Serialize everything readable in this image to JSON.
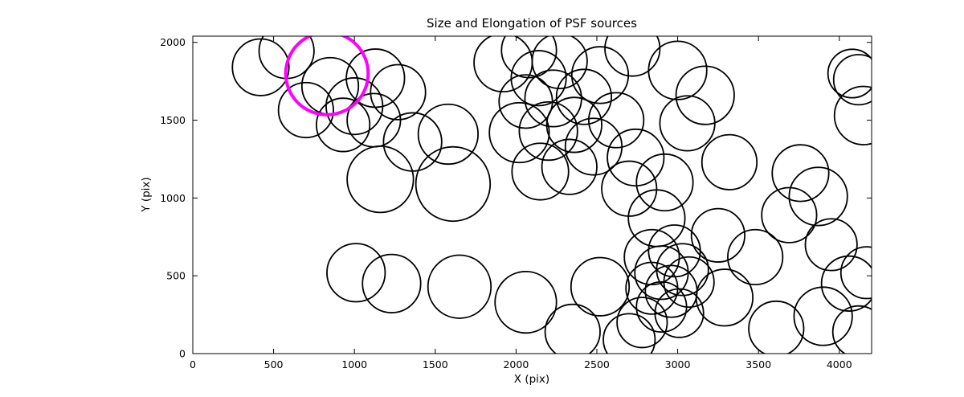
{
  "chart_data": {
    "type": "scatter",
    "title": "Size and Elongation of PSF sources",
    "xlabel": "X (pix)",
    "ylabel": "Y (pix)",
    "xlim": [
      0,
      4200
    ],
    "ylim": [
      0,
      2040
    ],
    "xticks": [
      0,
      500,
      1000,
      1500,
      2000,
      2500,
      3000,
      3500,
      4000
    ],
    "yticks": [
      0,
      500,
      1000,
      1500,
      2000
    ],
    "grid": false,
    "legend": false,
    "circle_color": "#000000",
    "highlight_color": "#ff00ff",
    "circles": [
      {
        "x": 420,
        "y": 1840,
        "r": 175
      },
      {
        "x": 580,
        "y": 1945,
        "r": 170
      },
      {
        "x": 850,
        "y": 1720,
        "r": 175
      },
      {
        "x": 700,
        "y": 1565,
        "r": 170
      },
      {
        "x": 1000,
        "y": 1590,
        "r": 175
      },
      {
        "x": 1130,
        "y": 1770,
        "r": 180
      },
      {
        "x": 1270,
        "y": 1680,
        "r": 170
      },
      {
        "x": 930,
        "y": 1470,
        "r": 165
      },
      {
        "x": 1120,
        "y": 1500,
        "r": 165
      },
      {
        "x": 1360,
        "y": 1360,
        "r": 180
      },
      {
        "x": 1580,
        "y": 1410,
        "r": 185
      },
      {
        "x": 1160,
        "y": 1120,
        "r": 205
      },
      {
        "x": 1610,
        "y": 1090,
        "r": 230
      },
      {
        "x": 1920,
        "y": 1870,
        "r": 180
      },
      {
        "x": 2080,
        "y": 1950,
        "r": 170
      },
      {
        "x": 2140,
        "y": 1770,
        "r": 170
      },
      {
        "x": 2270,
        "y": 1880,
        "r": 170
      },
      {
        "x": 2060,
        "y": 1620,
        "r": 165
      },
      {
        "x": 2230,
        "y": 1640,
        "r": 175
      },
      {
        "x": 2020,
        "y": 1420,
        "r": 185
      },
      {
        "x": 2200,
        "y": 1430,
        "r": 180
      },
      {
        "x": 2360,
        "y": 1470,
        "r": 170
      },
      {
        "x": 2420,
        "y": 1650,
        "r": 170
      },
      {
        "x": 2520,
        "y": 1790,
        "r": 175
      },
      {
        "x": 2480,
        "y": 1330,
        "r": 175
      },
      {
        "x": 2330,
        "y": 1200,
        "r": 170
      },
      {
        "x": 2150,
        "y": 1170,
        "r": 175
      },
      {
        "x": 2620,
        "y": 1500,
        "r": 170
      },
      {
        "x": 2720,
        "y": 1960,
        "r": 170
      },
      {
        "x": 3000,
        "y": 1820,
        "r": 180
      },
      {
        "x": 3170,
        "y": 1660,
        "r": 180
      },
      {
        "x": 3060,
        "y": 1480,
        "r": 170
      },
      {
        "x": 4080,
        "y": 1800,
        "r": 150
      },
      {
        "x": 4120,
        "y": 1760,
        "r": 155
      },
      {
        "x": 4150,
        "y": 1530,
        "r": 180
      },
      {
        "x": 2740,
        "y": 1260,
        "r": 175
      },
      {
        "x": 2700,
        "y": 1060,
        "r": 170
      },
      {
        "x": 2920,
        "y": 1100,
        "r": 175
      },
      {
        "x": 3320,
        "y": 1230,
        "r": 170
      },
      {
        "x": 2870,
        "y": 870,
        "r": 175
      },
      {
        "x": 3760,
        "y": 1160,
        "r": 175
      },
      {
        "x": 3870,
        "y": 1010,
        "r": 180
      },
      {
        "x": 3690,
        "y": 890,
        "r": 170
      },
      {
        "x": 3950,
        "y": 700,
        "r": 160
      },
      {
        "x": 1010,
        "y": 520,
        "r": 180
      },
      {
        "x": 1230,
        "y": 450,
        "r": 180
      },
      {
        "x": 1650,
        "y": 430,
        "r": 195
      },
      {
        "x": 2060,
        "y": 330,
        "r": 190
      },
      {
        "x": 2350,
        "y": 140,
        "r": 170
      },
      {
        "x": 2520,
        "y": 430,
        "r": 180
      },
      {
        "x": 2840,
        "y": 620,
        "r": 170
      },
      {
        "x": 2980,
        "y": 660,
        "r": 160
      },
      {
        "x": 2900,
        "y": 520,
        "r": 165
      },
      {
        "x": 3030,
        "y": 540,
        "r": 160
      },
      {
        "x": 2840,
        "y": 420,
        "r": 160
      },
      {
        "x": 2960,
        "y": 400,
        "r": 160
      },
      {
        "x": 3070,
        "y": 460,
        "r": 155
      },
      {
        "x": 2900,
        "y": 300,
        "r": 155
      },
      {
        "x": 3010,
        "y": 260,
        "r": 150
      },
      {
        "x": 2780,
        "y": 200,
        "r": 155
      },
      {
        "x": 2700,
        "y": 90,
        "r": 160
      },
      {
        "x": 3290,
        "y": 360,
        "r": 175
      },
      {
        "x": 3480,
        "y": 620,
        "r": 170
      },
      {
        "x": 3610,
        "y": 160,
        "r": 170
      },
      {
        "x": 3900,
        "y": 240,
        "r": 180
      },
      {
        "x": 4060,
        "y": 450,
        "r": 170
      },
      {
        "x": 4170,
        "y": 520,
        "r": 160
      },
      {
        "x": 4120,
        "y": 140,
        "r": 160
      },
      {
        "x": 3250,
        "y": 760,
        "r": 165
      },
      {
        "x": 830,
        "y": 1800,
        "r": 255,
        "highlight": true
      }
    ]
  }
}
